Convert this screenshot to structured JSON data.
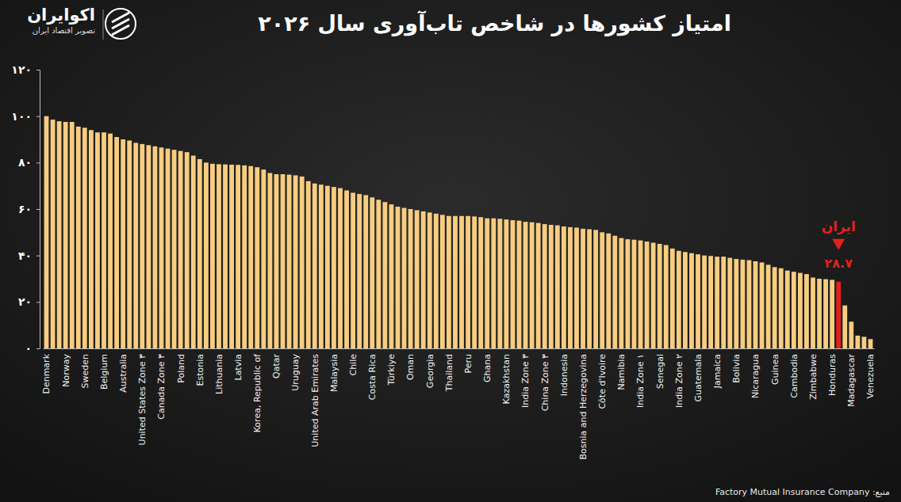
{
  "chart_data": {
    "type": "bar",
    "title": "امتیاز کشورها در شاخص تاب‌آوری سال ۲۰۲۶",
    "source": "منبع: Factory Mutual Insurance Company",
    "brand": "اکوایران",
    "brand_tagline": "تصویر اقتصاد ایران",
    "categories": [
      "Denmark",
      null,
      null,
      "Norway",
      null,
      null,
      "Sweden",
      null,
      null,
      "Belgium",
      null,
      null,
      "Australia",
      null,
      null,
      "United States Zone ۳",
      null,
      null,
      "Canada Zone ۳",
      null,
      null,
      "Poland",
      null,
      null,
      "Estonia",
      null,
      null,
      "Lithuania",
      null,
      null,
      "Latvia",
      null,
      null,
      "Korea, Republic of",
      null,
      null,
      "Qatar",
      null,
      null,
      "Uruguay",
      null,
      null,
      "United Arab Emirates",
      null,
      null,
      "Malaysia",
      null,
      null,
      "Chile",
      null,
      null,
      "Costa Rica",
      null,
      null,
      "Türkiye",
      null,
      null,
      "Oman",
      null,
      null,
      "Georgia",
      null,
      null,
      "Thailand",
      null,
      null,
      "Peru",
      null,
      null,
      "Ghana",
      null,
      null,
      "Kazakhstan",
      null,
      null,
      "India Zone ۳",
      null,
      null,
      "China Zone ۳",
      null,
      null,
      "Indonesia",
      null,
      null,
      "Bosnia and Herzegovina",
      null,
      null,
      "Côte d'Ivoire",
      null,
      null,
      "Namibia",
      null,
      null,
      "India Zone ۱",
      null,
      null,
      "Senegal",
      null,
      null,
      "India Zone ۲",
      null,
      null,
      "Guatemala",
      null,
      null,
      "Jamaica",
      null,
      null,
      "Bolivia",
      null,
      null,
      "Nicaragua",
      null,
      null,
      "Guinea",
      null,
      null,
      "Cambodia",
      null,
      null,
      "Zimbabwe",
      null,
      null,
      "Honduras",
      null,
      null,
      "Madagascar",
      null,
      null,
      "Venezuela"
    ],
    "values": [
      100,
      98.5,
      97.8,
      97.5,
      97.5,
      95.5,
      95,
      94,
      93,
      93,
      92.5,
      91,
      90,
      89.5,
      88.5,
      88,
      87.5,
      87,
      86.5,
      86,
      85.5,
      85,
      84.5,
      83,
      81.5,
      80,
      79.5,
      79.3,
      79.2,
      79.1,
      79,
      78.8,
      78.5,
      78,
      77,
      75.5,
      75,
      75,
      74.8,
      74.5,
      74,
      72,
      71,
      70.5,
      70,
      69.5,
      69,
      68,
      67,
      66.5,
      66,
      65,
      64,
      63,
      62,
      61,
      60.5,
      60,
      59.5,
      59,
      58.5,
      58,
      57.5,
      57,
      57,
      57,
      57,
      56.8,
      56.5,
      56,
      56,
      55.8,
      55.5,
      55.2,
      55,
      54.5,
      54.3,
      54,
      53.5,
      53.2,
      53,
      52.5,
      52.2,
      52,
      51.5,
      51.3,
      51,
      50,
      49.5,
      48.5,
      47.5,
      47,
      46.8,
      46.5,
      46,
      45.5,
      45,
      44.5,
      43,
      42,
      41.5,
      41,
      40.5,
      40,
      39.8,
      39.5,
      39.5,
      39,
      38.5,
      38.2,
      38,
      37.5,
      37,
      36,
      35,
      34.5,
      33.5,
      33,
      32.5,
      32,
      30.5,
      30,
      29.8,
      29.5,
      28.7,
      18.5,
      11.5,
      5.5,
      5,
      4
    ],
    "colors": [
      "#f7cd80",
      "#f7cd80",
      "#f7cd80",
      "#f7cd80",
      "#f7cd80",
      "#f7cd80",
      "#f7cd80",
      "#f7cd80",
      "#f7cd80",
      "#f7cd80",
      "#f7cd80",
      "#f7cd80",
      "#f7cd80",
      "#f7cd80",
      "#f7cd80",
      "#f7cd80",
      "#f7cd80",
      "#f7cd80",
      "#f7cd80",
      "#f7cd80",
      "#f7cd80",
      "#f7cd80",
      "#f7cd80",
      "#f7cd80",
      "#f7cd80",
      "#f7cd80",
      "#f7cd80",
      "#f7cd80",
      "#f7cd80",
      "#f7cd80",
      "#f7cd80",
      "#f7cd80",
      "#f7cd80",
      "#f7cd80",
      "#f7cd80",
      "#f7cd80",
      "#f7cd80",
      "#f7cd80",
      "#f7cd80",
      "#f7cd80",
      "#f7cd80",
      "#f7cd80",
      "#f7cd80",
      "#f7cd80",
      "#f7cd80",
      "#f7cd80",
      "#f7cd80",
      "#f7cd80",
      "#f7cd80",
      "#f7cd80",
      "#f7cd80",
      "#f7cd80",
      "#f7cd80",
      "#f7cd80",
      "#f7cd80",
      "#f7cd80",
      "#f7cd80",
      "#f7cd80",
      "#f7cd80",
      "#f7cd80",
      "#f7cd80",
      "#f7cd80",
      "#f7cd80",
      "#f7cd80",
      "#f7cd80",
      "#f7cd80",
      "#f7cd80",
      "#f7cd80",
      "#f7cd80",
      "#f7cd80",
      "#f7cd80",
      "#f7cd80",
      "#f7cd80",
      "#f7cd80",
      "#f7cd80",
      "#f7cd80",
      "#f7cd80",
      "#f7cd80",
      "#f7cd80",
      "#f7cd80",
      "#f7cd80",
      "#f7cd80",
      "#f7cd80",
      "#f7cd80",
      "#f7cd80",
      "#f7cd80",
      "#f7cd80",
      "#f7cd80",
      "#f7cd80",
      "#f7cd80",
      "#f7cd80",
      "#f7cd80",
      "#f7cd80",
      "#f7cd80",
      "#f7cd80",
      "#f7cd80",
      "#f7cd80",
      "#f7cd80",
      "#f7cd80",
      "#f7cd80",
      "#f7cd80",
      "#f7cd80",
      "#f7cd80",
      "#f7cd80",
      "#f7cd80",
      "#f7cd80",
      "#f7cd80",
      "#f7cd80",
      "#f7cd80",
      "#f7cd80",
      "#f7cd80",
      "#f7cd80",
      "#f7cd80",
      "#f7cd80",
      "#f7cd80",
      "#f7cd80",
      "#f7cd80",
      "#f7cd80",
      "#f7cd80",
      "#f7cd80",
      "#f7cd80",
      "#f7cd80",
      "#f7cd80",
      "#f7cd80",
      "#e3211c",
      "#f7cd80",
      "#f7cd80",
      "#f7cd80",
      "#f7cd80",
      "#f7cd80"
    ],
    "annotations": [
      {
        "text": "ایران",
        "value": 28.7,
        "label": "۲۸.۷",
        "color": "#e3211c"
      }
    ],
    "ylim": [
      0,
      120
    ],
    "yticks": [
      {
        "value": 0,
        "label": "۰"
      },
      {
        "value": 20,
        "label": "۲۰"
      },
      {
        "value": 40,
        "label": "۴۰"
      },
      {
        "value": 60,
        "label": "۶۰"
      },
      {
        "value": 80,
        "label": "۸۰"
      },
      {
        "value": 100,
        "label": "۱۰۰"
      },
      {
        "value": 120,
        "label": "۱۲۰"
      }
    ],
    "grid": false
  }
}
